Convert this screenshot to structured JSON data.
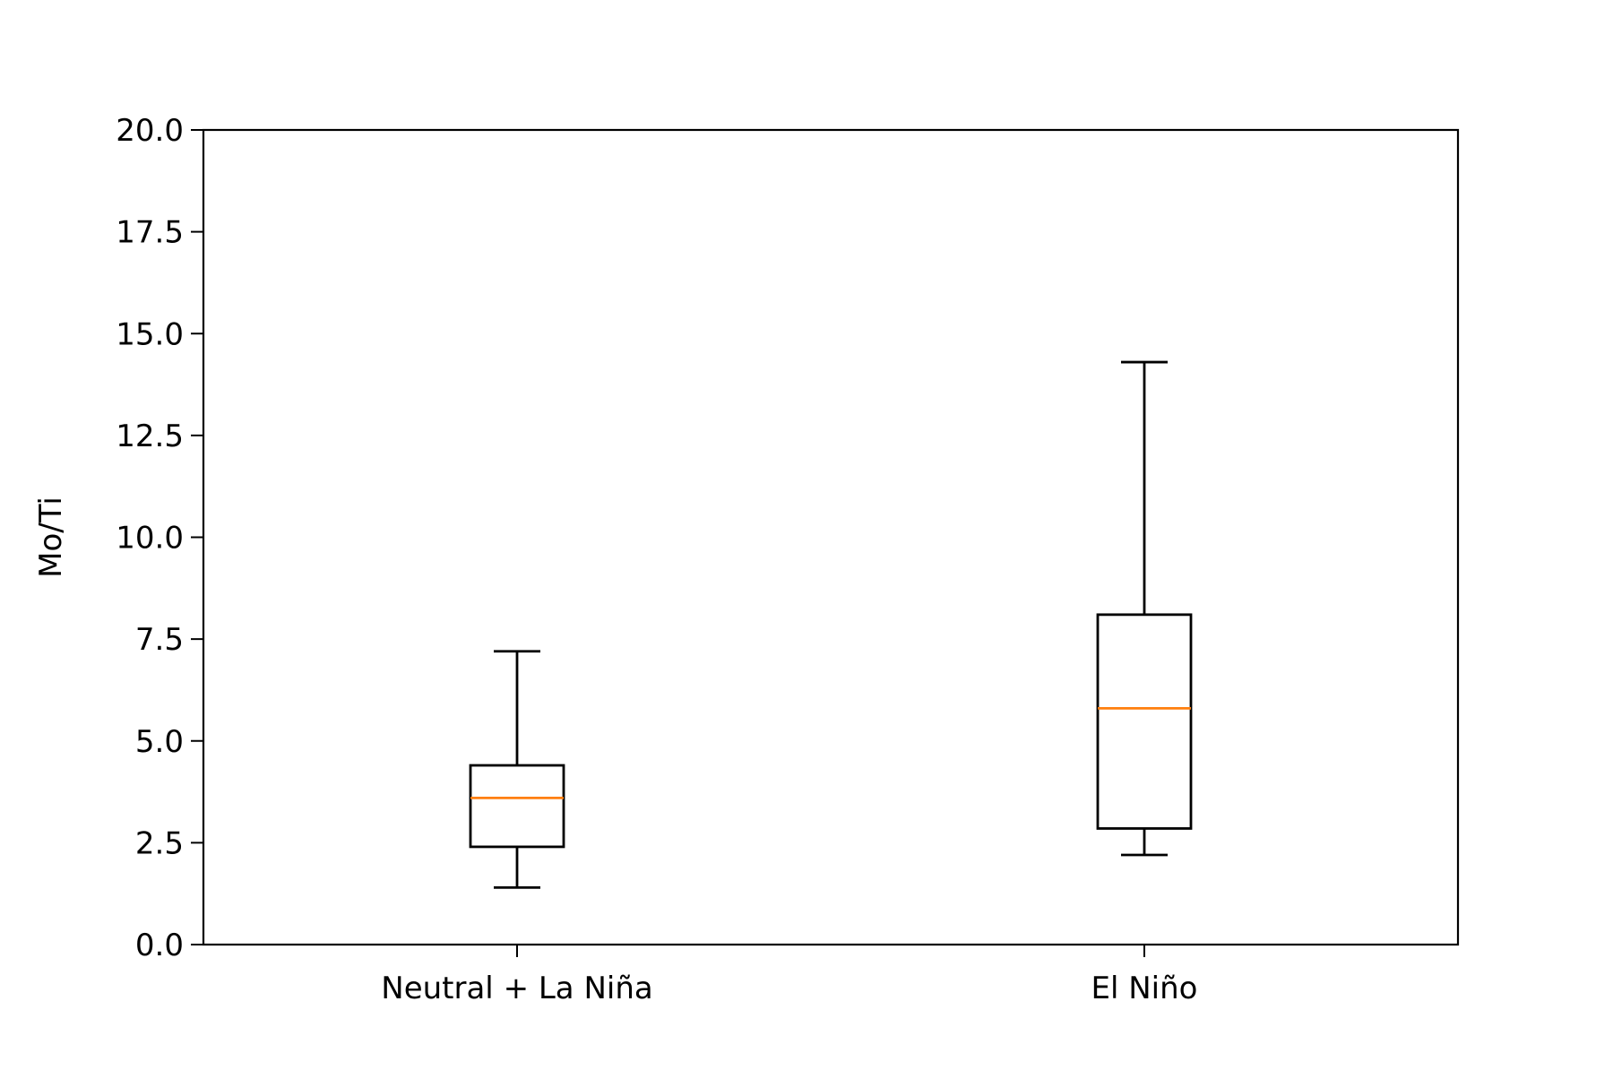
{
  "chart_data": {
    "type": "box",
    "title": "",
    "xlabel": "",
    "ylabel": "Mo/Ti",
    "ylim": [
      0,
      20
    ],
    "yticks": [
      "0.0",
      "2.5",
      "5.0",
      "7.5",
      "10.0",
      "12.5",
      "15.0",
      "17.5",
      "20.0"
    ],
    "categories": [
      "Neutral + La Niña",
      "El Niño"
    ],
    "boxes": [
      {
        "category": "Neutral + La Niña",
        "whisker_low": 1.4,
        "q1": 2.4,
        "median": 3.6,
        "q3": 4.4,
        "whisker_high": 7.2
      },
      {
        "category": "El Niño",
        "whisker_low": 2.2,
        "q1": 2.85,
        "median": 5.8,
        "q3": 8.1,
        "whisker_high": 14.3
      }
    ],
    "grid": false,
    "colors": {
      "box": "#000000",
      "median": "#ff7f0e",
      "axis": "#000000"
    }
  }
}
